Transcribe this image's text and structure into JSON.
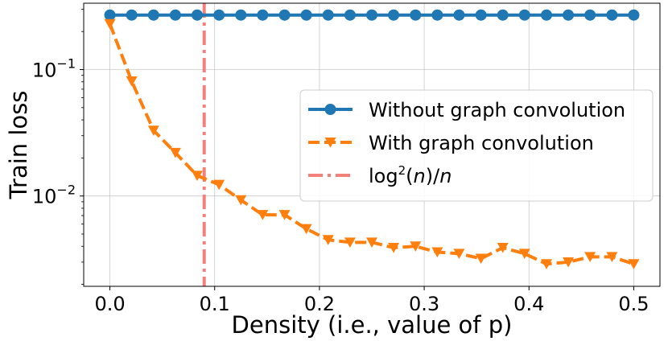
{
  "chart_data": {
    "type": "line",
    "title": "",
    "xlabel": "Density (i.e., value of p)",
    "ylabel": "Train loss",
    "yscale": "log",
    "xlim": [
      -0.025,
      0.525
    ],
    "ylim": [
      0.00193,
      0.335
    ],
    "grid": true,
    "legend_position": "center-right",
    "x_ticks": [
      0.0,
      0.1,
      0.2,
      0.3,
      0.4,
      0.5
    ],
    "x_tick_labels": [
      "0.0",
      "0.1",
      "0.2",
      "0.3",
      "0.4",
      "0.5"
    ],
    "y_ticks": [
      0.01,
      0.1
    ],
    "y_tick_labels": [
      {
        "base": "10",
        "exp": "−2"
      },
      {
        "base": "10",
        "exp": "−1"
      }
    ],
    "x": [
      0.0,
      0.0208,
      0.0417,
      0.0625,
      0.0833,
      0.1042,
      0.125,
      0.1458,
      0.1667,
      0.1875,
      0.2083,
      0.2292,
      0.25,
      0.2708,
      0.2917,
      0.3125,
      0.3333,
      0.3542,
      0.375,
      0.3958,
      0.4167,
      0.4375,
      0.4583,
      0.4792,
      0.5
    ],
    "series": [
      {
        "name": "Without graph convolution",
        "color": "#1f77b4",
        "marker": "circle",
        "linestyle": "solid",
        "values": [
          0.27,
          0.27,
          0.27,
          0.27,
          0.27,
          0.27,
          0.27,
          0.27,
          0.27,
          0.27,
          0.27,
          0.27,
          0.27,
          0.27,
          0.27,
          0.27,
          0.27,
          0.27,
          0.27,
          0.27,
          0.27,
          0.27,
          0.27,
          0.27,
          0.27
        ]
      },
      {
        "name": "With graph convolution",
        "color": "#ff7f0e",
        "marker": "triangle-down",
        "linestyle": "dashed",
        "values": [
          0.23,
          0.081,
          0.033,
          0.022,
          0.0145,
          0.0123,
          0.0093,
          0.0071,
          0.0071,
          0.0055,
          0.0045,
          0.0043,
          0.0043,
          0.0039,
          0.004,
          0.0036,
          0.0035,
          0.0032,
          0.0039,
          0.0035,
          0.0029,
          0.003,
          0.0033,
          0.0033,
          0.0029
        ]
      }
    ],
    "vline": {
      "name_parts": {
        "pre": "log",
        "sup": "2",
        "open": "(",
        "var1": "n",
        "mid": ")/",
        "var2": "n"
      },
      "x": 0.09,
      "color": "#f4807a",
      "linestyle": "dashdot"
    }
  }
}
